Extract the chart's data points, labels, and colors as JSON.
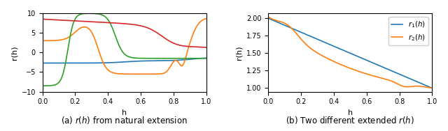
{
  "fig_width": 6.4,
  "fig_height": 1.88,
  "dpi": 100,
  "subplot_a": {
    "xlabel": "h",
    "ylabel": "r(h)",
    "caption": "(a) $r(h)$ from natural extension",
    "xlim": [
      0.0,
      1.0
    ],
    "ylim": [
      -10.0,
      10.0
    ]
  },
  "subplot_b": {
    "xlabel": "h",
    "ylabel": "r(h)",
    "caption": "(b) Two different extended $r(h)$",
    "xlim": [
      0.0,
      1.0
    ],
    "legend": [
      "$r_1(h)$",
      "$r_2(h)$"
    ]
  },
  "colors": {
    "blue": "#1f77b4",
    "orange": "#ff7f0e",
    "green": "#2ca02c",
    "red": "#d62728"
  }
}
